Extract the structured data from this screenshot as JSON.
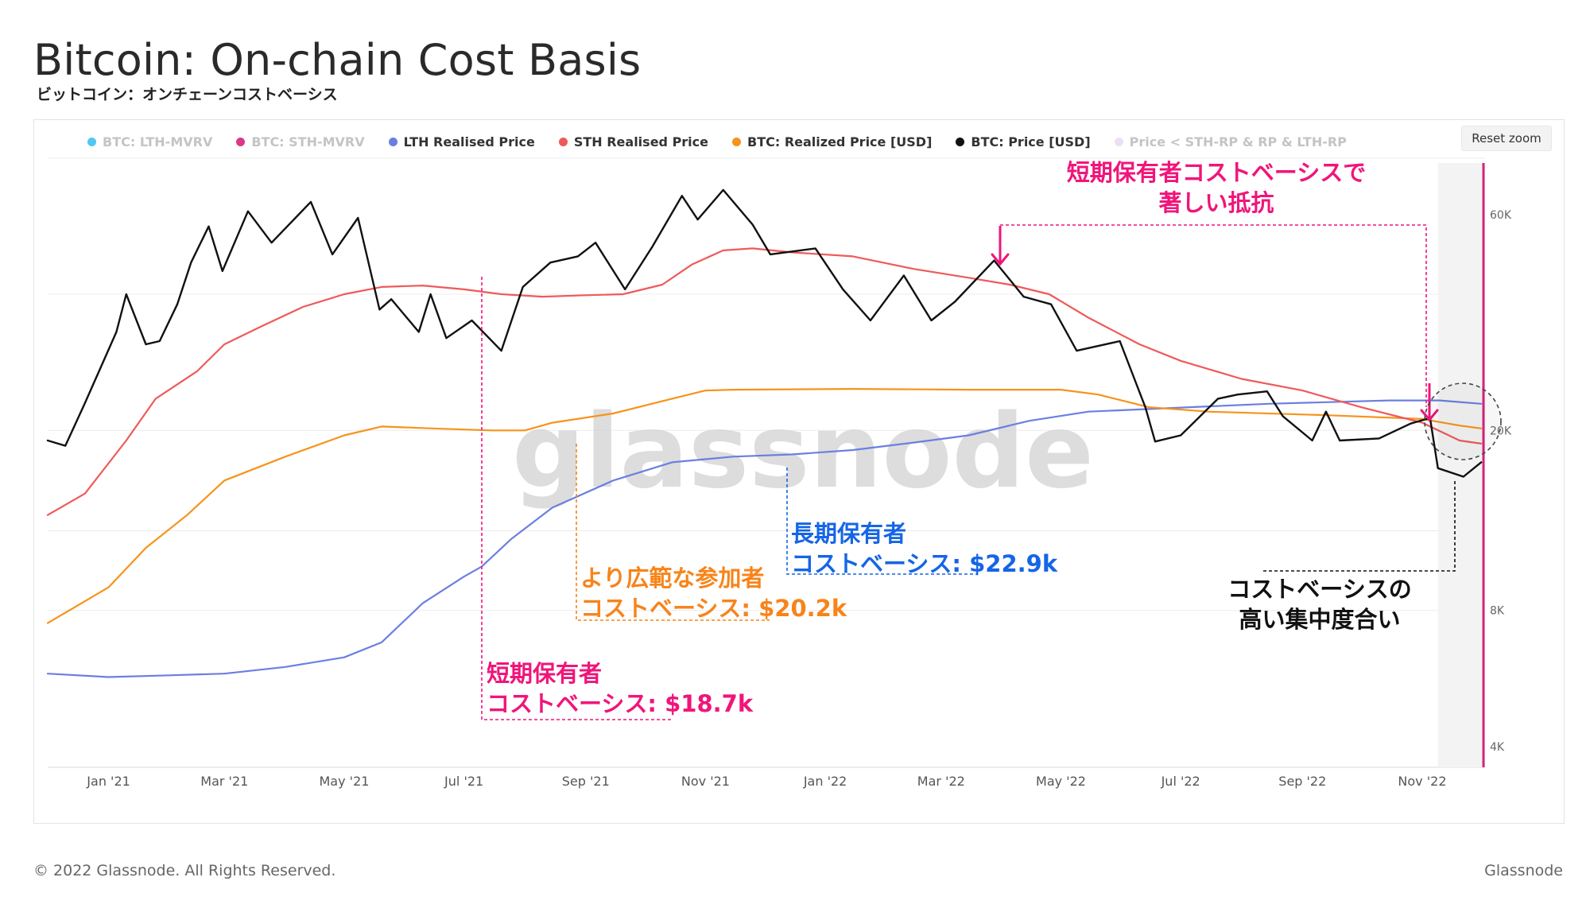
{
  "header": {
    "title": "Bitcoin: On-chain Cost Basis",
    "subtitle": "ビットコイン：オンチェーンコストベーシス"
  },
  "toolbar": {
    "reset_zoom_label": "Reset zoom"
  },
  "legend": [
    {
      "label": "BTC: LTH-MVRV",
      "color": "#3fc1f0",
      "active": false
    },
    {
      "label": "BTC: STH-MVRV",
      "color": "#d6247c",
      "active": false
    },
    {
      "label": "LTH Realised Price",
      "color": "#6b7fe0",
      "active": true
    },
    {
      "label": "STH Realised Price",
      "color": "#ef5a5a",
      "active": true
    },
    {
      "label": "BTC: Realized Price [USD]",
      "color": "#f7931a",
      "active": true
    },
    {
      "label": "BTC: Price [USD]",
      "color": "#111111",
      "active": true
    },
    {
      "label": "Price < STH-RP & RP & LTH-RP",
      "color": "#e9ddf7",
      "active": false
    }
  ],
  "watermark": "glassnode",
  "annotations": {
    "sth_resistance": [
      "短期保有者コストベーシスで",
      "著しい抵抗"
    ],
    "sth_cost": [
      "短期保有者",
      "コストベーシス: $18.7k"
    ],
    "realized_cost": [
      "より広範な参加者",
      "コストベーシス: $20.2k"
    ],
    "lth_cost": [
      "長期保有者",
      "コストベーシス: $22.9k"
    ],
    "concentration": [
      "コストベーシスの",
      "高い集中度合い"
    ]
  },
  "annotation_colors": {
    "sth": "#f0157a",
    "realized": "#f7841a",
    "lth": "#1565e6",
    "concentration": "#111111"
  },
  "footer": {
    "copyright": "© 2022 Glassnode. All Rights Reserved.",
    "brand": "Glassnode"
  },
  "chart_data": {
    "type": "line",
    "y_scale": "log",
    "ylim": [
      3600,
      78000
    ],
    "y_ticks": [
      {
        "value": 4000,
        "label": "4K"
      },
      {
        "value": 8000,
        "label": "8K"
      },
      {
        "value": 20000,
        "label": "20K"
      },
      {
        "value": 60000,
        "label": "60K"
      }
    ],
    "x_range": [
      "2020-12-01",
      "2022-12-03"
    ],
    "x_ticks": [
      {
        "date": "2021-01-01",
        "label": "Jan '21"
      },
      {
        "date": "2021-03-01",
        "label": "Mar '21"
      },
      {
        "date": "2021-05-01",
        "label": "May '21"
      },
      {
        "date": "2021-07-01",
        "label": "Jul '21"
      },
      {
        "date": "2021-09-01",
        "label": "Sep '21"
      },
      {
        "date": "2021-11-01",
        "label": "Nov '21"
      },
      {
        "date": "2022-01-01",
        "label": "Jan '22"
      },
      {
        "date": "2022-03-01",
        "label": "Mar '22"
      },
      {
        "date": "2022-05-01",
        "label": "May '22"
      },
      {
        "date": "2022-07-01",
        "label": "Jul '22"
      },
      {
        "date": "2022-09-01",
        "label": "Sep '22"
      },
      {
        "date": "2022-11-01",
        "label": "Nov '22"
      }
    ],
    "grid": true,
    "series": [
      {
        "name": "LTH Realised Price",
        "color": "#6b7fe0",
        "points": [
          [
            "2020-12-01",
            5800
          ],
          [
            "2021-01-01",
            5700
          ],
          [
            "2021-02-01",
            5750
          ],
          [
            "2021-03-01",
            5800
          ],
          [
            "2021-04-01",
            6000
          ],
          [
            "2021-05-01",
            6300
          ],
          [
            "2021-05-20",
            6800
          ],
          [
            "2021-06-10",
            8300
          ],
          [
            "2021-07-01",
            9500
          ],
          [
            "2021-07-10",
            10000
          ],
          [
            "2021-07-25",
            11500
          ],
          [
            "2021-08-15",
            13500
          ],
          [
            "2021-09-15",
            15500
          ],
          [
            "2021-10-15",
            17000
          ],
          [
            "2021-11-15",
            17500
          ],
          [
            "2021-12-15",
            17700
          ],
          [
            "2022-01-15",
            18100
          ],
          [
            "2022-02-15",
            18800
          ],
          [
            "2022-03-15",
            19500
          ],
          [
            "2022-04-15",
            21000
          ],
          [
            "2022-05-15",
            22000
          ],
          [
            "2022-06-15",
            22300
          ],
          [
            "2022-07-15",
            22600
          ],
          [
            "2022-08-15",
            22900
          ],
          [
            "2022-09-15",
            23100
          ],
          [
            "2022-10-15",
            23300
          ],
          [
            "2022-11-10",
            23300
          ],
          [
            "2022-12-01",
            22900
          ]
        ]
      },
      {
        "name": "STH Realised Price",
        "color": "#ef5a5a",
        "points": [
          [
            "2020-12-01",
            13000
          ],
          [
            "2020-12-20",
            14500
          ],
          [
            "2021-01-10",
            19000
          ],
          [
            "2021-01-25",
            23500
          ],
          [
            "2021-02-15",
            27000
          ],
          [
            "2021-03-01",
            31000
          ],
          [
            "2021-03-20",
            34000
          ],
          [
            "2021-04-10",
            37500
          ],
          [
            "2021-05-01",
            40000
          ],
          [
            "2021-05-20",
            41500
          ],
          [
            "2021-06-10",
            41800
          ],
          [
            "2021-07-01",
            41000
          ],
          [
            "2021-07-20",
            40000
          ],
          [
            "2021-08-10",
            39500
          ],
          [
            "2021-09-01",
            39800
          ],
          [
            "2021-09-20",
            40000
          ],
          [
            "2021-10-10",
            42000
          ],
          [
            "2021-10-25",
            46500
          ],
          [
            "2021-11-10",
            50000
          ],
          [
            "2021-11-25",
            50500
          ],
          [
            "2021-12-15",
            49500
          ],
          [
            "2022-01-15",
            48500
          ],
          [
            "2022-02-15",
            45500
          ],
          [
            "2022-03-15",
            43500
          ],
          [
            "2022-04-05",
            42000
          ],
          [
            "2022-04-25",
            40000
          ],
          [
            "2022-05-15",
            35500
          ],
          [
            "2022-06-10",
            31000
          ],
          [
            "2022-07-01",
            28500
          ],
          [
            "2022-08-01",
            26000
          ],
          [
            "2022-09-01",
            24500
          ],
          [
            "2022-10-01",
            22500
          ],
          [
            "2022-11-01",
            20800
          ],
          [
            "2022-11-20",
            19000
          ],
          [
            "2022-12-01",
            18700
          ]
        ]
      },
      {
        "name": "BTC: Realized Price [USD]",
        "color": "#f7931a",
        "points": [
          [
            "2020-12-01",
            7500
          ],
          [
            "2021-01-01",
            9000
          ],
          [
            "2021-01-20",
            11000
          ],
          [
            "2021-02-10",
            13000
          ],
          [
            "2021-03-01",
            15500
          ],
          [
            "2021-04-01",
            17500
          ],
          [
            "2021-05-01",
            19500
          ],
          [
            "2021-05-20",
            20400
          ],
          [
            "2021-06-15",
            20200
          ],
          [
            "2021-07-15",
            20000
          ],
          [
            "2021-08-01",
            20000
          ],
          [
            "2021-08-15",
            20800
          ],
          [
            "2021-09-15",
            21800
          ],
          [
            "2021-10-15",
            23500
          ],
          [
            "2021-11-01",
            24500
          ],
          [
            "2021-11-15",
            24600
          ],
          [
            "2022-01-15",
            24700
          ],
          [
            "2022-03-15",
            24600
          ],
          [
            "2022-05-01",
            24600
          ],
          [
            "2022-05-20",
            24000
          ],
          [
            "2022-06-15",
            22500
          ],
          [
            "2022-07-15",
            22000
          ],
          [
            "2022-09-15",
            21600
          ],
          [
            "2022-11-01",
            21200
          ],
          [
            "2022-11-20",
            20500
          ],
          [
            "2022-12-01",
            20200
          ]
        ]
      },
      {
        "name": "BTC: Price [USD]",
        "color": "#111111",
        "points": [
          [
            "2020-12-01",
            19000
          ],
          [
            "2020-12-10",
            18500
          ],
          [
            "2020-12-20",
            23000
          ],
          [
            "2021-01-05",
            33000
          ],
          [
            "2021-01-10",
            40000
          ],
          [
            "2021-01-20",
            31000
          ],
          [
            "2021-01-27",
            31500
          ],
          [
            "2021-02-05",
            38000
          ],
          [
            "2021-02-12",
            47000
          ],
          [
            "2021-02-21",
            56500
          ],
          [
            "2021-02-28",
            45000
          ],
          [
            "2021-03-13",
            61000
          ],
          [
            "2021-03-25",
            52000
          ],
          [
            "2021-04-14",
            64000
          ],
          [
            "2021-04-25",
            49000
          ],
          [
            "2021-05-08",
            59000
          ],
          [
            "2021-05-19",
            37000
          ],
          [
            "2021-05-25",
            39000
          ],
          [
            "2021-06-08",
            33000
          ],
          [
            "2021-06-14",
            40000
          ],
          [
            "2021-06-22",
            32000
          ],
          [
            "2021-07-05",
            35000
          ],
          [
            "2021-07-20",
            30000
          ],
          [
            "2021-07-31",
            41500
          ],
          [
            "2021-08-14",
            47000
          ],
          [
            "2021-08-28",
            48500
          ],
          [
            "2021-09-06",
            52000
          ],
          [
            "2021-09-21",
            41000
          ],
          [
            "2021-10-05",
            51000
          ],
          [
            "2021-10-20",
            66000
          ],
          [
            "2021-10-28",
            58500
          ],
          [
            "2021-11-10",
            68000
          ],
          [
            "2021-11-25",
            57000
          ],
          [
            "2021-12-04",
            49000
          ],
          [
            "2021-12-27",
            50500
          ],
          [
            "2022-01-10",
            41000
          ],
          [
            "2022-01-24",
            35000
          ],
          [
            "2022-02-10",
            44000
          ],
          [
            "2022-02-24",
            35000
          ],
          [
            "2022-03-08",
            38500
          ],
          [
            "2022-03-28",
            47500
          ],
          [
            "2022-04-12",
            39500
          ],
          [
            "2022-04-26",
            38000
          ],
          [
            "2022-05-09",
            30000
          ],
          [
            "2022-05-31",
            31500
          ],
          [
            "2022-06-13",
            22500
          ],
          [
            "2022-06-18",
            18900
          ],
          [
            "2022-07-01",
            19500
          ],
          [
            "2022-07-20",
            23500
          ],
          [
            "2022-07-30",
            24000
          ],
          [
            "2022-08-14",
            24400
          ],
          [
            "2022-08-22",
            21500
          ],
          [
            "2022-09-06",
            19000
          ],
          [
            "2022-09-13",
            22000
          ],
          [
            "2022-09-20",
            19000
          ],
          [
            "2022-10-10",
            19200
          ],
          [
            "2022-10-26",
            20700
          ],
          [
            "2022-11-05",
            21300
          ],
          [
            "2022-11-09",
            16500
          ],
          [
            "2022-11-22",
            15800
          ],
          [
            "2022-12-01",
            17000
          ]
        ]
      }
    ]
  }
}
